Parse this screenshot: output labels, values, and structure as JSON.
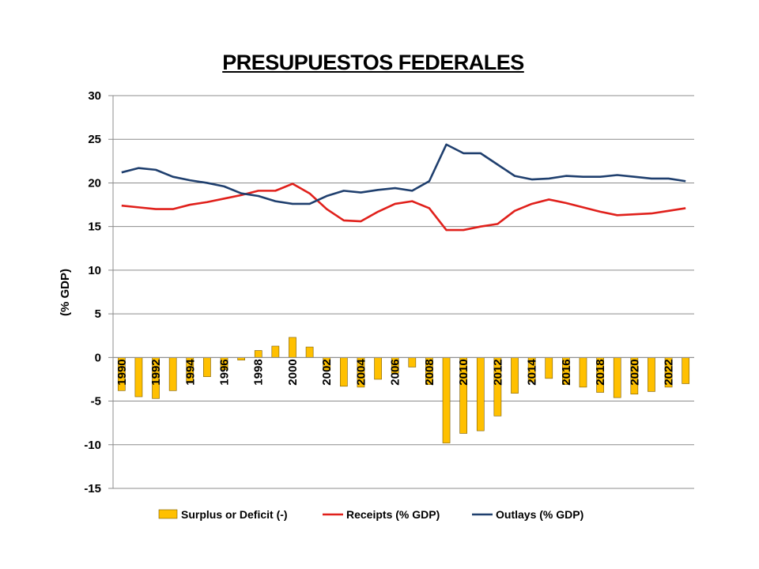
{
  "chart_data": {
    "type": "bar+line",
    "title": "PRESUPUESTOS FEDERALES",
    "ylabel": "(% GDP)",
    "xlabel": "",
    "ylim": [
      -15,
      30
    ],
    "yticks": [
      30,
      25,
      20,
      15,
      10,
      5,
      0,
      -5,
      -10,
      -15
    ],
    "grid": true,
    "legend_position": "bottom",
    "x": [
      1990,
      1991,
      1992,
      1993,
      1994,
      1995,
      1996,
      1997,
      1998,
      1999,
      2000,
      2001,
      2002,
      2003,
      2004,
      2005,
      2006,
      2007,
      2008,
      2009,
      2010,
      2011,
      2012,
      2013,
      2014,
      2015,
      2016,
      2017,
      2018,
      2019,
      2020,
      2021,
      2022,
      2023
    ],
    "x_tick_labels": [
      "1990",
      "1992",
      "1994",
      "1996",
      "1998",
      "2000",
      "2002",
      "2004",
      "2006",
      "2008",
      "2010",
      "2012",
      "2014",
      "2016",
      "2018",
      "2020",
      "2022"
    ],
    "series": [
      {
        "name": "Surplus or Deficit (-)",
        "type": "bar",
        "color": "#FFC000",
        "values": [
          -3.8,
          -4.5,
          -4.7,
          -3.8,
          -2.9,
          -2.2,
          -1.4,
          -0.3,
          0.8,
          1.3,
          2.3,
          1.2,
          -1.5,
          -3.3,
          -3.4,
          -2.5,
          -1.8,
          -1.1,
          -3.1,
          -9.8,
          -8.7,
          -8.4,
          -6.7,
          -4.1,
          -2.8,
          -2.4,
          -3.1,
          -3.4,
          -4.0,
          -4.6,
          -4.2,
          -3.9,
          -3.4,
          -3.0
        ]
      },
      {
        "name": "Receipts (% GDP)",
        "type": "line",
        "color": "#E0201B",
        "values": [
          17.4,
          17.2,
          17.0,
          17.0,
          17.5,
          17.8,
          18.2,
          18.6,
          19.1,
          19.1,
          19.9,
          18.8,
          17.0,
          15.7,
          15.6,
          16.7,
          17.6,
          17.9,
          17.1,
          14.6,
          14.6,
          15.0,
          15.3,
          16.8,
          17.6,
          18.1,
          17.7,
          17.2,
          16.7,
          16.3,
          16.4,
          16.5,
          16.8,
          17.1
        ]
      },
      {
        "name": "Outlays (% GDP)",
        "type": "line",
        "color": "#1F3F6E",
        "values": [
          21.2,
          21.7,
          21.5,
          20.7,
          20.3,
          20.0,
          19.6,
          18.8,
          18.5,
          17.9,
          17.6,
          17.6,
          18.5,
          19.1,
          18.9,
          19.2,
          19.4,
          19.1,
          20.2,
          24.4,
          23.4,
          23.4,
          22.1,
          20.8,
          20.4,
          20.5,
          20.8,
          20.7,
          20.7,
          20.9,
          20.7,
          20.5,
          20.5,
          20.2
        ]
      }
    ]
  }
}
